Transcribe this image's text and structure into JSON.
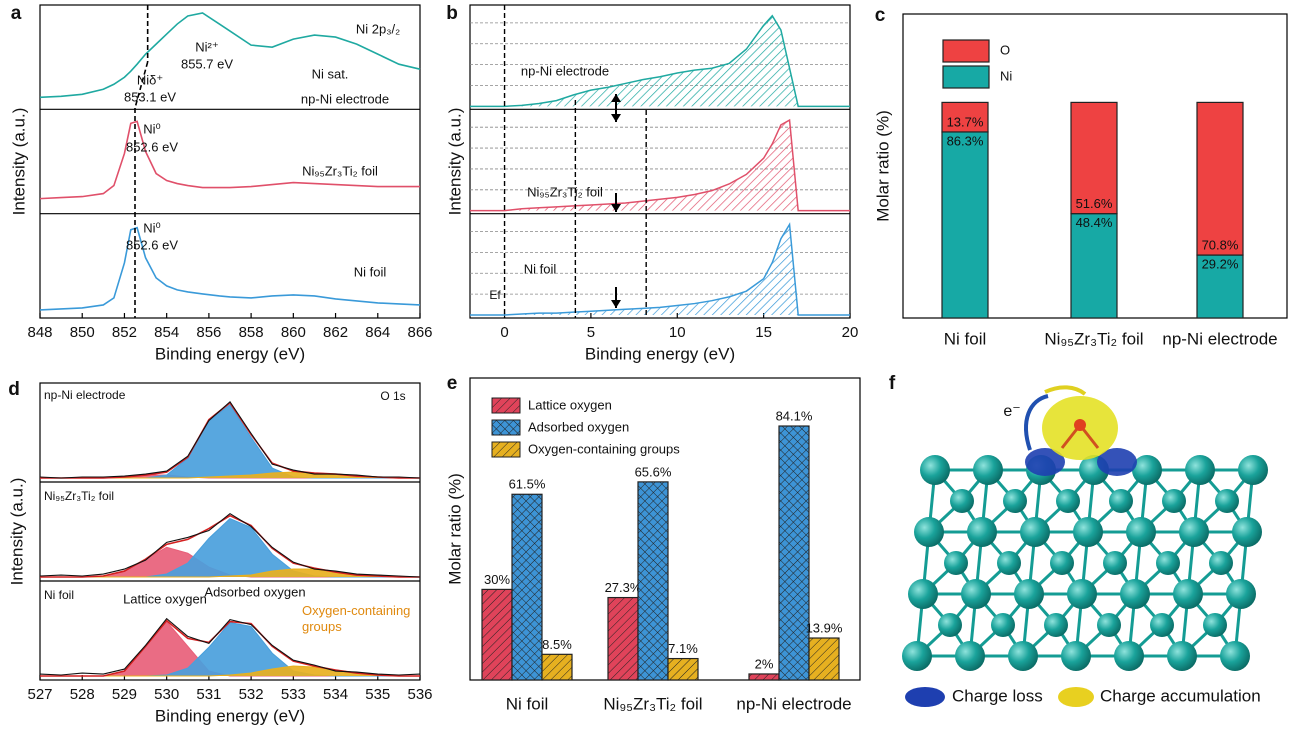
{
  "chart_data": [
    {
      "type": "line",
      "panel_label": "a",
      "xlabel": "Binding energy (eV)",
      "ylabel": "Intensity (a.u.)",
      "xlim": [
        848,
        866
      ],
      "xticks": [
        848,
        850,
        852,
        854,
        856,
        858,
        860,
        862,
        864,
        866
      ],
      "ylim": [
        0,
        1
      ],
      "annotation": "Ni 2p₃/₂",
      "reference_x": [
        853.1,
        852.5
      ],
      "x": [
        848,
        849,
        850,
        851,
        851.5,
        852,
        852.3,
        852.6,
        853,
        853.5,
        854,
        854.5,
        855,
        855.7,
        856.5,
        857,
        858,
        859,
        860,
        861,
        862,
        863,
        864,
        865,
        866
      ],
      "series": [
        {
          "name": "np-Ni electrode",
          "color": "#1fa9a1",
          "notes": [
            "Ni²⁺",
            "855.7 eV",
            "Niδ⁺",
            "853.1 eV",
            "Ni sat."
          ],
          "values": [
            0.12,
            0.13,
            0.15,
            0.2,
            0.25,
            0.32,
            0.38,
            0.45,
            0.55,
            0.65,
            0.75,
            0.85,
            0.93,
            0.96,
            0.85,
            0.78,
            0.64,
            0.62,
            0.7,
            0.74,
            0.72,
            0.65,
            0.55,
            0.45,
            0.4
          ]
        },
        {
          "name": "Ni₉₅Zr₃Ti₂ foil",
          "color": "#e0506a",
          "notes": [
            "Ni⁰",
            "852.6 eV"
          ],
          "values": [
            0.15,
            0.16,
            0.17,
            0.2,
            0.28,
            0.6,
            0.9,
            0.92,
            0.62,
            0.4,
            0.33,
            0.3,
            0.28,
            0.26,
            0.26,
            0.26,
            0.27,
            0.29,
            0.31,
            0.3,
            0.29,
            0.28,
            0.27,
            0.27,
            0.27
          ]
        },
        {
          "name": "Ni foil",
          "color": "#3a9ad9",
          "notes": [
            "Ni⁰",
            "852.6 eV"
          ],
          "values": [
            0.08,
            0.09,
            0.1,
            0.13,
            0.2,
            0.55,
            0.88,
            0.9,
            0.6,
            0.4,
            0.32,
            0.28,
            0.26,
            0.24,
            0.22,
            0.21,
            0.2,
            0.22,
            0.23,
            0.22,
            0.19,
            0.17,
            0.15,
            0.14,
            0.13
          ]
        }
      ]
    },
    {
      "type": "area",
      "panel_label": "b",
      "xlabel": "Binding energy (eV)",
      "ylabel": "Intensity (a.u.)",
      "xlim": [
        -2,
        20
      ],
      "xticks": [
        0,
        5,
        10,
        15,
        20
      ],
      "ylim": [
        0,
        1
      ],
      "annotation": "Ef",
      "reference_x": [
        0,
        4.1,
        8.2
      ],
      "x": [
        -2,
        0,
        1,
        2,
        3,
        4,
        5,
        6,
        7,
        8,
        9,
        10,
        11,
        12,
        13,
        14,
        15,
        15.5,
        16,
        16.5,
        17,
        18,
        20
      ],
      "series": [
        {
          "name": "np-Ni electrode",
          "color": "#1fa9a1",
          "values": [
            0,
            0,
            0.01,
            0.03,
            0.06,
            0.12,
            0.17,
            0.2,
            0.24,
            0.28,
            0.31,
            0.35,
            0.38,
            0.4,
            0.45,
            0.6,
            0.85,
            0.95,
            0.8,
            0.4,
            0,
            0,
            0
          ]
        },
        {
          "name": "Ni₉₅Zr₃Ti₂ foil",
          "color": "#e0506a",
          "values": [
            0,
            0,
            0.02,
            0.03,
            0.04,
            0.05,
            0.06,
            0.07,
            0.08,
            0.1,
            0.12,
            0.14,
            0.17,
            0.21,
            0.28,
            0.38,
            0.55,
            0.7,
            0.9,
            0.95,
            0,
            0,
            0
          ]
        },
        {
          "name": "Ni foil",
          "color": "#3a9ad9",
          "values": [
            0,
            0,
            0.01,
            0.02,
            0.02,
            0.03,
            0.04,
            0.05,
            0.06,
            0.07,
            0.08,
            0.1,
            0.12,
            0.15,
            0.19,
            0.25,
            0.38,
            0.55,
            0.8,
            0.95,
            0,
            0,
            0
          ]
        }
      ]
    },
    {
      "type": "bar",
      "stacked": true,
      "panel_label": "c",
      "ylabel": "Molar ratio (%)",
      "ylim": [
        0,
        141
      ],
      "categories": [
        "Ni foil",
        "Ni₉₅Zr₃Ti₂ foil",
        "np-Ni electrode"
      ],
      "series": [
        {
          "name": "Ni",
          "color": "#17a9a5",
          "values": [
            86.3,
            48.4,
            29.2
          ],
          "value_labels": [
            "86.3%",
            "48.4%",
            "29.2%"
          ]
        },
        {
          "name": "O",
          "color": "#ee4242",
          "values": [
            13.7,
            51.6,
            70.8
          ],
          "value_labels": [
            "13.7%",
            "51.6%",
            "70.8%"
          ]
        }
      ]
    },
    {
      "type": "area",
      "panel_label": "d",
      "xlabel": "Binding energy (eV)",
      "ylabel": "Intensity (a.u.)",
      "xlim": [
        527,
        536
      ],
      "xticks": [
        527,
        528,
        529,
        530,
        531,
        532,
        533,
        534,
        535,
        536
      ],
      "ylim": [
        0,
        0.9
      ],
      "annotation": "O 1s",
      "x": [
        527,
        527.5,
        528,
        528.5,
        529,
        529.5,
        530,
        530.5,
        531,
        531.5,
        532,
        532.5,
        533,
        533.5,
        534,
        534.5,
        535,
        535.5,
        536
      ],
      "panels": [
        {
          "name": "np-Ni electrode",
          "series": [
            {
              "color": "#e8607a",
              "values": [
                0,
                0,
                0,
                0,
                0.01,
                0.03,
                0.03,
                0.01,
                0,
                0,
                0,
                0,
                0,
                0,
                0,
                0,
                0,
                0,
                0
              ]
            },
            {
              "color": "#4aa0dc",
              "values": [
                0,
                0,
                0,
                0,
                0,
                0,
                0.03,
                0.2,
                0.58,
                0.74,
                0.41,
                0.1,
                0.01,
                0,
                0,
                0,
                0,
                0,
                0
              ]
            },
            {
              "color": "#e8b020",
              "values": [
                0,
                0,
                0,
                0,
                0,
                0,
                0,
                0,
                0.01,
                0.02,
                0.03,
                0.05,
                0.06,
                0.05,
                0.04,
                0.02,
                0.01,
                0,
                0
              ]
            },
            {
              "color": "#d42020",
              "values": [
                0,
                0,
                0,
                0,
                0.01,
                0.03,
                0.06,
                0.21,
                0.59,
                0.76,
                0.44,
                0.15,
                0.07,
                0.05,
                0.04,
                0.02,
                0.01,
                0,
                0
              ]
            },
            {
              "color": "#111111",
              "values": [
                0.01,
                0,
                0.01,
                0.01,
                0.02,
                0.04,
                0.07,
                0.22,
                0.58,
                0.77,
                0.45,
                0.14,
                0.08,
                0.04,
                0.04,
                0.03,
                0.01,
                0.01,
                0
              ]
            }
          ]
        },
        {
          "name": "Ni₉₅Zr₃Ti₂ foil",
          "series": [
            {
              "color": "#e8607a",
              "values": [
                0,
                0,
                0,
                0.01,
                0.06,
                0.18,
                0.3,
                0.24,
                0.1,
                0.02,
                0,
                0,
                0,
                0,
                0,
                0,
                0,
                0,
                0
              ]
            },
            {
              "color": "#4aa0dc",
              "values": [
                0,
                0,
                0,
                0,
                0,
                0,
                0.03,
                0.14,
                0.39,
                0.59,
                0.5,
                0.23,
                0.06,
                0.01,
                0,
                0,
                0,
                0,
                0
              ]
            },
            {
              "color": "#e8b020",
              "values": [
                0,
                0,
                0,
                0,
                0,
                0,
                0,
                0,
                0,
                0.01,
                0.02,
                0.06,
                0.08,
                0.08,
                0.05,
                0.02,
                0.01,
                0,
                0
              ]
            },
            {
              "color": "#d42020",
              "values": [
                0,
                0,
                0,
                0.01,
                0.06,
                0.18,
                0.33,
                0.38,
                0.49,
                0.62,
                0.52,
                0.29,
                0.14,
                0.09,
                0.05,
                0.02,
                0.01,
                0,
                0
              ]
            },
            {
              "color": "#111111",
              "values": [
                0.01,
                0.02,
                0.01,
                0.03,
                0.08,
                0.17,
                0.35,
                0.4,
                0.47,
                0.64,
                0.51,
                0.3,
                0.15,
                0.08,
                0.06,
                0.03,
                0.02,
                0.01,
                0
              ]
            }
          ]
        },
        {
          "name": "Ni foil",
          "series": [
            {
              "name": "Lattice oxygen",
              "color": "#e8607a",
              "values": [
                0,
                0,
                0,
                0,
                0.05,
                0.3,
                0.55,
                0.3,
                0.05,
                0,
                0,
                0,
                0,
                0,
                0,
                0,
                0,
                0,
                0
              ]
            },
            {
              "name": "Adsorbed oxygen",
              "color": "#4aa0dc",
              "values": [
                0,
                0,
                0,
                0,
                0,
                0,
                0.01,
                0.08,
                0.29,
                0.54,
                0.5,
                0.23,
                0.05,
                0.01,
                0,
                0,
                0,
                0,
                0
              ]
            },
            {
              "name": "Oxygen-containing groups",
              "color": "#e8b020",
              "values": [
                0,
                0,
                0,
                0,
                0,
                0,
                0,
                0,
                0,
                0.01,
                0.03,
                0.07,
                0.1,
                0.09,
                0.06,
                0.03,
                0.01,
                0,
                0
              ]
            },
            {
              "color": "#d42020",
              "values": [
                0,
                0,
                0,
                0,
                0.05,
                0.3,
                0.56,
                0.38,
                0.34,
                0.55,
                0.53,
                0.3,
                0.15,
                0.1,
                0.06,
                0.03,
                0.01,
                0,
                0
              ]
            },
            {
              "color": "#111111",
              "values": [
                0.02,
                0.01,
                0.03,
                0.02,
                0.07,
                0.31,
                0.58,
                0.4,
                0.33,
                0.57,
                0.52,
                0.31,
                0.16,
                0.11,
                0.05,
                0.04,
                0.02,
                0.01,
                0.02
              ]
            }
          ]
        }
      ]
    },
    {
      "type": "bar",
      "stacked": false,
      "panel_label": "e",
      "ylabel": "Molar ratio (%)",
      "ylim": [
        0,
        100
      ],
      "categories": [
        "Ni foil",
        "Ni₉₅Zr₃Ti₂ foil",
        "np-Ni electrode"
      ],
      "series": [
        {
          "name": "Lattice oxygen",
          "color": "#e0435a",
          "values": [
            30,
            27.3,
            2
          ],
          "value_labels": [
            "30%",
            "27.3%",
            "2%"
          ]
        },
        {
          "name": "Adsorbed oxygen",
          "color": "#3d94d6",
          "values": [
            61.5,
            65.6,
            84.1
          ],
          "value_labels": [
            "61.5%",
            "65.6%",
            "84.1%"
          ]
        },
        {
          "name": "Oxygen-containing groups",
          "color": "#e6b020",
          "values": [
            8.5,
            7.1,
            13.9
          ],
          "value_labels": [
            "8.5%",
            "7.1%",
            "13.9%"
          ]
        }
      ]
    }
  ],
  "figure_f": {
    "panel_label": "f",
    "annotation": "e⁻",
    "legend": [
      "Charge loss",
      "Charge accumulation"
    ]
  }
}
